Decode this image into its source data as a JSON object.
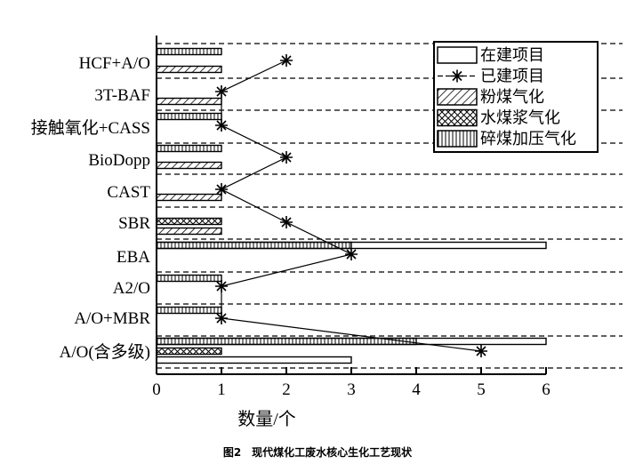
{
  "chart_data": {
    "type": "bar",
    "orientation": "horizontal",
    "title": "",
    "caption": "图2　现代煤化工废水核心生化工艺现状",
    "xlabel": "数量/个",
    "ylabel": "",
    "xlim": [
      0,
      6
    ],
    "xticks": [
      "0",
      "1",
      "2",
      "3",
      "4",
      "5",
      "6"
    ],
    "grid": "horizontal dashed",
    "legend_position": "top-right",
    "categories": [
      "HCF+A/O",
      "3T-BAF",
      "接触氧化+CASS",
      "BioDopp",
      "CAST",
      "SBR",
      "EBA",
      "A2/O",
      "A/O+MBR",
      "A/O(含多级)"
    ],
    "legend": [
      "在建项目",
      "已建项目",
      "粉煤气化",
      "水煤浆气化",
      "碎煤加压气化"
    ],
    "bars": [
      {
        "category": "HCF+A/O",
        "series": "碎煤加压气化",
        "value": 1
      },
      {
        "category": "HCF+A/O",
        "series": "粉煤气化",
        "value": 1
      },
      {
        "category": "3T-BAF",
        "series": "粉煤气化",
        "value": 1
      },
      {
        "category": "接触氧化+CASS",
        "series": "碎煤加压气化",
        "value": 1
      },
      {
        "category": "BioDopp",
        "series": "碎煤加压气化",
        "value": 1
      },
      {
        "category": "BioDopp",
        "series": "粉煤气化",
        "value": 1
      },
      {
        "category": "CAST",
        "series": "粉煤气化",
        "value": 1
      },
      {
        "category": "SBR",
        "series": "水煤浆气化",
        "value": 1
      },
      {
        "category": "SBR",
        "series": "粉煤气化",
        "value": 1
      },
      {
        "category": "EBA",
        "series": "在建项目",
        "value": 6
      },
      {
        "category": "EBA",
        "series": "碎煤加压气化",
        "value": 3
      },
      {
        "category": "A2/O",
        "series": "碎煤加压气化",
        "value": 1
      },
      {
        "category": "A/O+MBR",
        "series": "碎煤加压气化",
        "value": 1
      },
      {
        "category": "A/O(含多级)",
        "series": "在建项目",
        "value": 6
      },
      {
        "category": "A/O(含多级)",
        "series": "碎煤加压气化",
        "value": 4
      },
      {
        "category": "A/O(含多级)",
        "series": "水煤浆气化",
        "value": 1
      },
      {
        "category": "A/O(含多级)",
        "series": "在建项目",
        "value": 3
      }
    ],
    "line_series": {
      "name": "已建项目",
      "values": [
        2,
        1,
        1,
        2,
        1,
        2,
        3,
        1,
        1,
        5
      ]
    }
  }
}
